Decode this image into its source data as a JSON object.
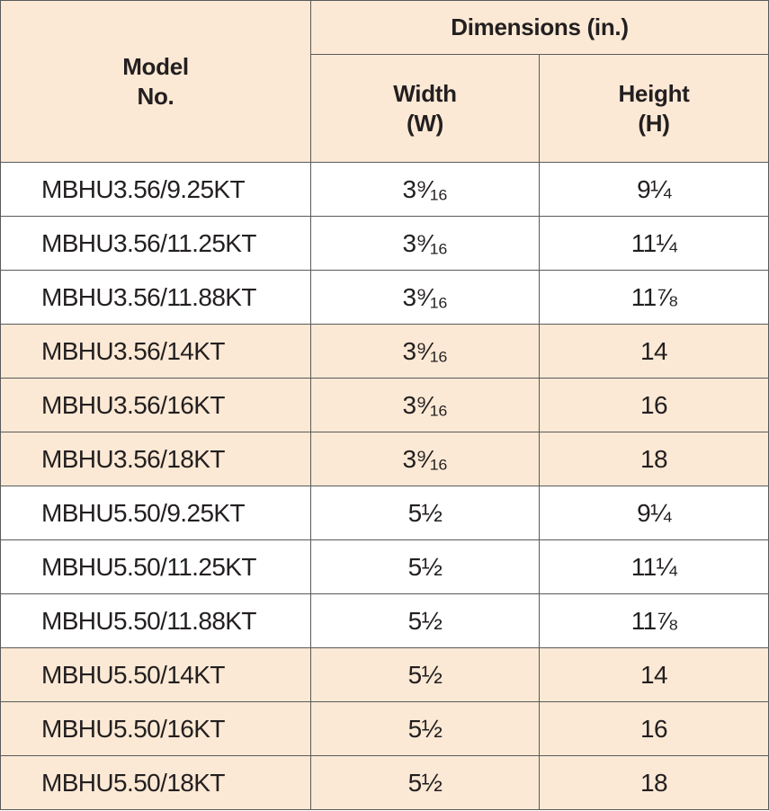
{
  "header": {
    "model_line1": "Model",
    "model_line2": "No.",
    "group": "Dimensions (in.)",
    "width_line1": "Width",
    "width_line2": "(W)",
    "height_line1": "Height",
    "height_line2": "(H)"
  },
  "colors": {
    "header_fill": "#fbe9d5",
    "band_fill": "#fbe9d5",
    "row_fill": "#ffffff",
    "border": "#5a5a5a",
    "text": "#231f20"
  },
  "rows": [
    {
      "model": "MBHU3.56/9.25KT",
      "width": "3⁹⁄₁₆",
      "height": "9¼",
      "tone": "white"
    },
    {
      "model": "MBHU3.56/11.25KT",
      "width": "3⁹⁄₁₆",
      "height": "11¼",
      "tone": "white"
    },
    {
      "model": "MBHU3.56/11.88KT",
      "width": "3⁹⁄₁₆",
      "height": "11⅞",
      "tone": "white"
    },
    {
      "model": "MBHU3.56/14KT",
      "width": "3⁹⁄₁₆",
      "height": "14",
      "tone": "tan"
    },
    {
      "model": "MBHU3.56/16KT",
      "width": "3⁹⁄₁₆",
      "height": "16",
      "tone": "tan"
    },
    {
      "model": "MBHU3.56/18KT",
      "width": "3⁹⁄₁₆",
      "height": "18",
      "tone": "tan"
    },
    {
      "model": "MBHU5.50/9.25KT",
      "width": "5½",
      "height": "9¼",
      "tone": "white"
    },
    {
      "model": "MBHU5.50/11.25KT",
      "width": "5½",
      "height": "11¼",
      "tone": "white"
    },
    {
      "model": "MBHU5.50/11.88KT",
      "width": "5½",
      "height": "11⅞",
      "tone": "white"
    },
    {
      "model": "MBHU5.50/14KT",
      "width": "5½",
      "height": "14",
      "tone": "tan"
    },
    {
      "model": "MBHU5.50/16KT",
      "width": "5½",
      "height": "16",
      "tone": "tan"
    },
    {
      "model": "MBHU5.50/18KT",
      "width": "5½",
      "height": "18",
      "tone": "tan"
    }
  ]
}
